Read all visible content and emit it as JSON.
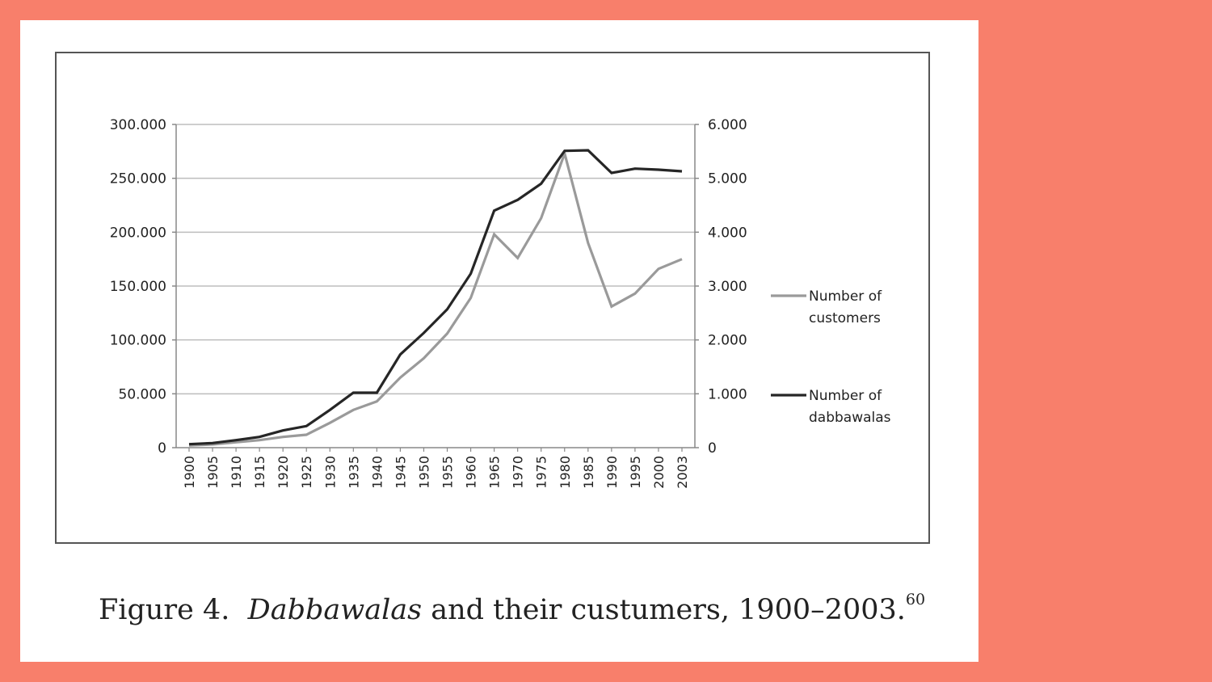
{
  "colors": {
    "background": "#f87f6b",
    "paper": "#ffffff",
    "customers_line": "#9a9a9a",
    "dabbawalas_line": "#262626",
    "grid": "#bdbdbd"
  },
  "caption": {
    "label": "Figure 4.",
    "italic": "Dabbawalas",
    "rest": " and their custumers, 1900–2003.",
    "footnote": "60"
  },
  "chart_data": {
    "type": "line",
    "title": "",
    "xlabel": "",
    "categories": [
      "1900",
      "1905",
      "1910",
      "1915",
      "1920",
      "1925",
      "1930",
      "1935",
      "1940",
      "1945",
      "1950",
      "1955",
      "1960",
      "1965",
      "1970",
      "1975",
      "1980",
      "1985",
      "1990",
      "1995",
      "2000",
      "2003"
    ],
    "y_left": {
      "ylim": [
        0,
        300000
      ],
      "ticks": [
        0,
        50000,
        100000,
        150000,
        200000,
        250000,
        300000
      ],
      "tick_labels": [
        "0",
        "50.000",
        "100.000",
        "150.000",
        "200.000",
        "250.000",
        "300.000"
      ]
    },
    "y_right": {
      "ylim": [
        0,
        6000
      ],
      "ticks": [
        0,
        1000,
        2000,
        3000,
        4000,
        5000,
        6000
      ],
      "tick_labels": [
        "0",
        "1.000",
        "2.000",
        "3.000",
        "4.000",
        "5.000",
        "6.000"
      ]
    },
    "grid": true,
    "legend_position": "right",
    "series": [
      {
        "name": "Number of customers",
        "legend_lines": [
          "Number of",
          "customers"
        ],
        "axis": "left",
        "color": "#9a9a9a",
        "values": [
          2000,
          3000,
          5000,
          7000,
          10000,
          12000,
          23000,
          35000,
          43000,
          65000,
          83000,
          106000,
          139000,
          198000,
          176000,
          213000,
          273000,
          190000,
          131000,
          143000,
          166000,
          175000
        ]
      },
      {
        "name": "Number of dabbawalas",
        "legend_lines": [
          "Number of",
          "dabbawalas"
        ],
        "axis": "right",
        "color": "#262626",
        "values": [
          65,
          85,
          140,
          200,
          320,
          400,
          700,
          1020,
          1020,
          1730,
          2130,
          2570,
          3230,
          4400,
          4600,
          4900,
          5510,
          5520,
          5100,
          5180,
          5160,
          5130
        ]
      }
    ]
  }
}
